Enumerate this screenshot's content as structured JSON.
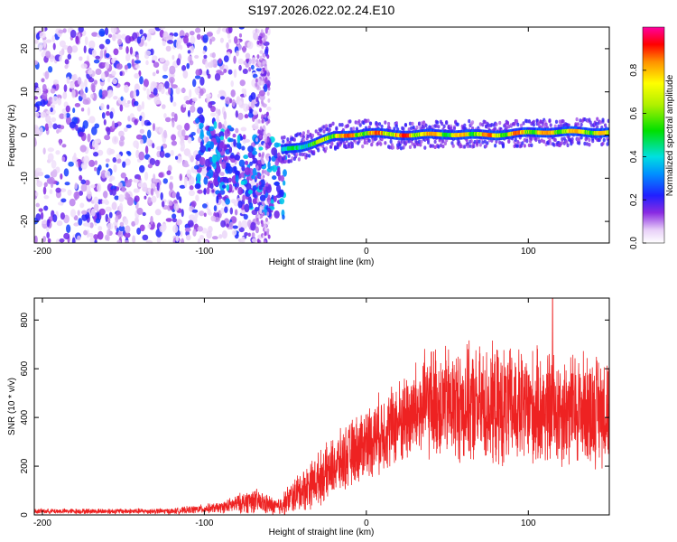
{
  "title": "S197.2026.022.02.24.E10",
  "colors": {
    "snr_line": "#ee2222",
    "frame": "#000000"
  },
  "chart_data": [
    {
      "type": "heatmap",
      "name": "spectrogram",
      "xlabel": "Height of straight line (km)",
      "ylabel": "Frequency (Hz)",
      "xlim": [
        -205,
        150
      ],
      "ylim": [
        -25,
        25
      ],
      "xticks": [
        -200,
        -100,
        0,
        100
      ],
      "yticks": [
        -20,
        -10,
        0,
        10,
        20
      ],
      "colorbar": {
        "label": "Normalized spectral amplitude",
        "range": [
          0,
          1
        ],
        "ticks": [
          "0.0",
          "0.2",
          "0.4",
          "0.6",
          "0.8"
        ]
      },
      "ridge": [
        {
          "x": -52,
          "y": -3.6,
          "a": 0.45
        },
        {
          "x": -40,
          "y": -2.6,
          "a": 0.55
        },
        {
          "x": -30,
          "y": -1.4,
          "a": 0.65
        },
        {
          "x": -20,
          "y": -0.2,
          "a": 0.85
        },
        {
          "x": -10,
          "y": 0.2,
          "a": 0.9
        },
        {
          "x": 0,
          "y": 0.4,
          "a": 0.85
        },
        {
          "x": 15,
          "y": 0.0,
          "a": 0.95
        },
        {
          "x": 30,
          "y": -0.2,
          "a": 0.9
        },
        {
          "x": 50,
          "y": 0.3,
          "a": 0.8
        },
        {
          "x": 80,
          "y": 0.2,
          "a": 0.9
        },
        {
          "x": 110,
          "y": 0.5,
          "a": 0.85
        },
        {
          "x": 150,
          "y": 0.8,
          "a": 0.8
        }
      ]
    },
    {
      "type": "line",
      "name": "snr",
      "xlabel": "Height of straight line (km)",
      "ylabel": "SNR (10 * v/v)",
      "xlim": [
        -205,
        150
      ],
      "ylim": [
        0,
        890
      ],
      "xticks": [
        -200,
        -100,
        0,
        100
      ],
      "yticks": [
        0,
        200,
        400,
        600,
        800
      ],
      "envelope": [
        {
          "x": -205,
          "mean": 15,
          "spread": 12
        },
        {
          "x": -120,
          "mean": 15,
          "spread": 14
        },
        {
          "x": -90,
          "mean": 30,
          "spread": 25
        },
        {
          "x": -70,
          "mean": 60,
          "spread": 60
        },
        {
          "x": -55,
          "mean": 30,
          "spread": 40
        },
        {
          "x": -40,
          "mean": 100,
          "spread": 100
        },
        {
          "x": -25,
          "mean": 170,
          "spread": 130
        },
        {
          "x": 0,
          "mean": 300,
          "spread": 170
        },
        {
          "x": 20,
          "mean": 380,
          "spread": 200
        },
        {
          "x": 40,
          "mean": 460,
          "spread": 260
        },
        {
          "x": 80,
          "mean": 440,
          "spread": 280
        },
        {
          "x": 120,
          "mean": 430,
          "spread": 270
        },
        {
          "x": 150,
          "mean": 440,
          "spread": 260
        }
      ],
      "peak": {
        "x": 115,
        "y": 890
      }
    }
  ]
}
